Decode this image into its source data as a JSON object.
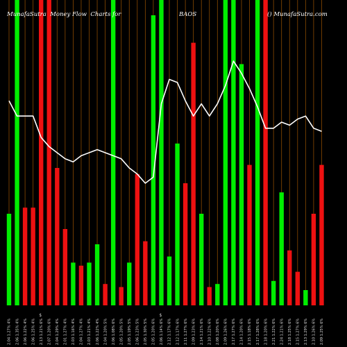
{
  "colors": {
    "background": "#000000",
    "green": "#00ee00",
    "red": "#ee1111",
    "grid": "#8b4a00",
    "line": "#ffffff"
  },
  "chart_data": {
    "type": "bar",
    "title": {
      "left": "MunafaSutra  Money Flow  Charts for",
      "symbol": "BAOS",
      "site": "() MunafaSutra.com"
    },
    "grid": true,
    "ylim": [
      0,
      100
    ],
    "bars": [
      {
        "value": 30,
        "color": "green",
        "label": "2.04 1.27% 4%"
      },
      {
        "value": 100,
        "color": "green",
        "label": "2.06 1.35% 4%"
      },
      {
        "value": 32,
        "color": "red",
        "label": "2.06 1.22% 4%"
      },
      {
        "value": 32,
        "color": "red",
        "label": "2.06 1.25% 4%"
      },
      {
        "value": 100,
        "color": "red",
        "label": "2.13 1.21% 6%"
      },
      {
        "value": 100,
        "color": "red",
        "label": "2.07 1.20% 6%"
      },
      {
        "value": 45,
        "color": "red",
        "label": "2.04 1.29% 4%"
      },
      {
        "value": 25,
        "color": "red",
        "label": "2.01 1.27% 4%"
      },
      {
        "value": 14,
        "color": "green",
        "label": "2.03 1.16% 4%"
      },
      {
        "value": 13,
        "color": "red",
        "label": "2.04 1.27% 4%"
      },
      {
        "value": 14,
        "color": "green",
        "label": "2.03 1.21% 4%"
      },
      {
        "value": 20,
        "color": "green",
        "label": "2.06 1.22% 4%"
      },
      {
        "value": 7,
        "color": "red",
        "label": "2.04 1.20% 5%"
      },
      {
        "value": 100,
        "color": "green",
        "label": "2.06 1.08% 6%"
      },
      {
        "value": 6,
        "color": "red",
        "label": "2.05 1.20% 5%"
      },
      {
        "value": 14,
        "color": "green",
        "label": "2.05 1.19% 5%"
      },
      {
        "value": 43,
        "color": "red",
        "label": "2.06 1.23% 5%"
      },
      {
        "value": 21,
        "color": "red",
        "label": "2.05 1.30% 5%"
      },
      {
        "value": 95,
        "color": "green",
        "label": "2.05 1.20% 6%"
      },
      {
        "value": 100,
        "color": "green",
        "label": "2.06 1.14% 6%"
      },
      {
        "value": 16,
        "color": "green",
        "label": "2.12 1.17% 6%"
      },
      {
        "value": 53,
        "color": "green",
        "label": "2.12 1.17% 6%"
      },
      {
        "value": 40,
        "color": "red",
        "label": "2.11 1.27% 6%"
      },
      {
        "value": 86,
        "color": "red",
        "label": "2.09 1.23% 6%"
      },
      {
        "value": 30,
        "color": "green",
        "label": "2.14 1.21% 6%"
      },
      {
        "value": 6,
        "color": "red",
        "label": "2.10 1.22% 6%"
      },
      {
        "value": 7,
        "color": "green",
        "label": "2.08 1.20% 6%"
      },
      {
        "value": 100,
        "color": "green",
        "label": "2.09 1.26% 6%"
      },
      {
        "value": 100,
        "color": "green",
        "label": "2.17 1.27% 6%"
      },
      {
        "value": 79,
        "color": "green",
        "label": "2.14 1.20% 6%"
      },
      {
        "value": 46,
        "color": "red",
        "label": "2.15 1.18% 6%"
      },
      {
        "value": 100,
        "color": "green",
        "label": "2.17 1.28% 6%"
      },
      {
        "value": 100,
        "color": "red",
        "label": "2.18 1.20% 6%"
      },
      {
        "value": 8,
        "color": "green",
        "label": "2.21 1.22% 6%"
      },
      {
        "value": 37,
        "color": "green",
        "label": "2.24 1.21% 6%"
      },
      {
        "value": 18,
        "color": "red",
        "label": "2.18 1.25% 6%"
      },
      {
        "value": 11,
        "color": "red",
        "label": "2.15 1.27% 6%"
      },
      {
        "value": 5,
        "color": "green",
        "label": "2.13 1.29% 6%"
      },
      {
        "value": 30,
        "color": "red",
        "label": "2.10 1.26% 6%"
      },
      {
        "value": 46,
        "color": "red",
        "label": "2.09 1.25% 6%"
      }
    ],
    "line": [
      67,
      62,
      62,
      62,
      55,
      52,
      50,
      48,
      47,
      49,
      50,
      51,
      50,
      49,
      48,
      45,
      43,
      40,
      42,
      66,
      74,
      73,
      67,
      62,
      66,
      62,
      66,
      72,
      80,
      76,
      71,
      65,
      58,
      58,
      60,
      59,
      61,
      62,
      58,
      57
    ],
    "markers": [
      {
        "index": 4,
        "text": "$"
      },
      {
        "index": 19,
        "text": "$"
      }
    ]
  }
}
